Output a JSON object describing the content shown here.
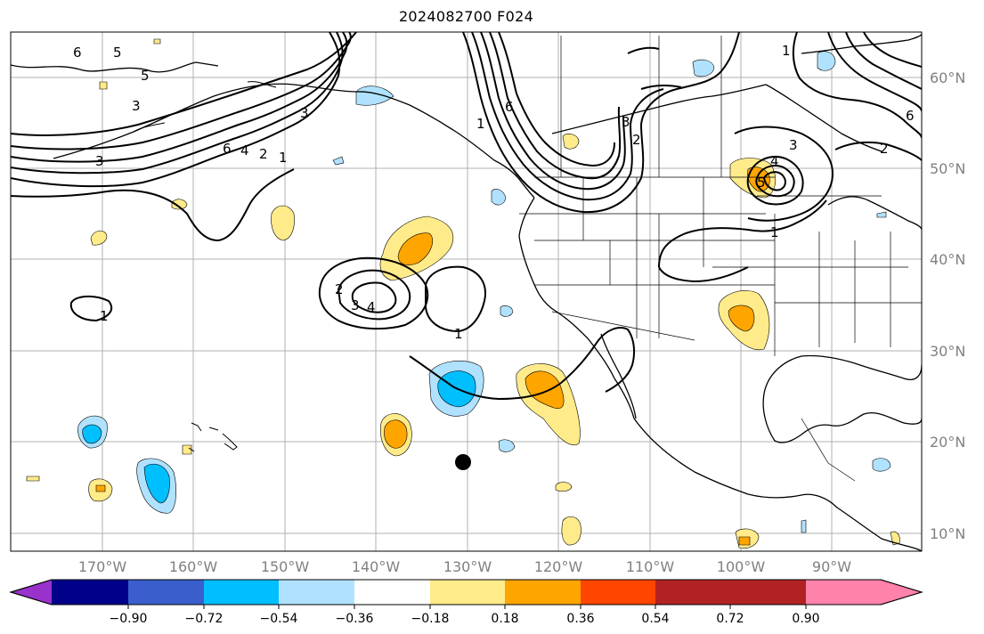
{
  "title": "2024082700 F024",
  "lat_labels": [
    "60°N",
    "50°N",
    "40°N",
    "30°N",
    "20°N",
    "10°N"
  ],
  "lon_labels": [
    "170°W",
    "160°W",
    "150°W",
    "140°W",
    "130°W",
    "120°W",
    "110°W",
    "100°W",
    "90°W"
  ],
  "colorbar": {
    "colors": [
      "#9932cc",
      "#00008b",
      "#3a5fcd",
      "#00bfff",
      "#b0e2ff",
      "#ffffff",
      "#ffeb8a",
      "#ffa500",
      "#ff4500",
      "#b22222",
      "#ff82ab"
    ],
    "tick_labels": [
      "−0.90",
      "−0.72",
      "−0.54",
      "−0.36",
      "−0.18",
      "0.18",
      "0.36",
      "0.54",
      "0.72",
      "0.90"
    ]
  },
  "contour_labels": [
    "3",
    "5",
    "6",
    "1",
    "3",
    "3",
    "6",
    "4",
    "2",
    "1",
    "6",
    "1",
    "3",
    "2",
    "2",
    "3",
    "4",
    "5",
    "1",
    "2",
    "3",
    "4",
    "1",
    "5",
    "6",
    "1"
  ]
}
